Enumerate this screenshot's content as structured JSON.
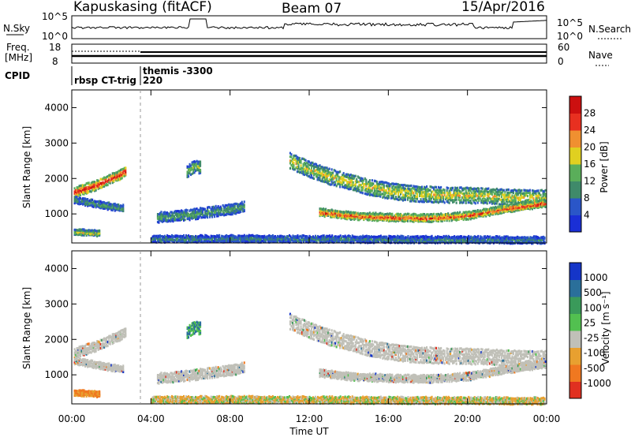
{
  "header": {
    "station": "Kapuskasing (fitACF)",
    "beam": "Beam 07",
    "date": "15/Apr/2016"
  },
  "noise_panel": {
    "left_label": "N.Sky",
    "right_label": "N.Search",
    "left_ticks": [
      "10^5",
      "10^0"
    ],
    "right_ticks": [
      "10^5",
      "10^0"
    ]
  },
  "freq_panel": {
    "left_label_1": "Freq.",
    "left_label_2": "[MHz]",
    "right_label": "Nave",
    "left_ticks": [
      "18",
      "8"
    ],
    "right_ticks": [
      "60",
      "0"
    ]
  },
  "cpid": {
    "label": "CPID",
    "segments": [
      {
        "start_hour": 0.0,
        "text": "rbsp CT-trig"
      },
      {
        "start_hour": 3.4,
        "text": "themis -3300"
      },
      {
        "start_hour": 3.4,
        "text": "220"
      }
    ]
  },
  "power_panel": {
    "ylabel": "Slant Range [km]",
    "yticks": [
      "1000",
      "2000",
      "3000",
      "4000"
    ],
    "colorbar_label": "Power [dB]",
    "colorbar_ticks": [
      "4",
      "8",
      "12",
      "16",
      "20",
      "24",
      "28"
    ]
  },
  "velocity_panel": {
    "ylabel": "Slant Range [km]",
    "yticks": [
      "1000",
      "2000",
      "3000",
      "4000"
    ],
    "colorbar_label": "Velocity [m s⁻¹]",
    "colorbar_ticks": [
      "1000",
      "500",
      "100",
      "25",
      "-25",
      "-100",
      "-500",
      "-1000"
    ]
  },
  "xaxis": {
    "label": "Time UT",
    "ticks": [
      "00:00",
      "04:00",
      "08:00",
      "12:00",
      "16:00",
      "20:00",
      "00:00"
    ]
  },
  "colors": {
    "power_scale": [
      "#1a2fd6",
      "#2a56c8",
      "#3f8a6a",
      "#5aae5a",
      "#e0d020",
      "#f09030",
      "#e83020",
      "#cc1010"
    ],
    "velocity_scale": [
      "#1535c8",
      "#2a6f9a",
      "#3a9a5a",
      "#52c050",
      "#c0c0b8",
      "#e8a030",
      "#f07820",
      "#e03020"
    ],
    "ground_scatter": "#c0c0b8"
  },
  "chart_data": {
    "type": "heatmap",
    "x_unit": "hours UT",
    "xlim": [
      0,
      24
    ],
    "ylim": [
      180,
      4500
    ],
    "y_unit": "km",
    "power_dB_range": [
      3,
      30
    ],
    "velocity_range": [
      -1000,
      1000
    ],
    "echo_bands": [
      {
        "t": [
          0.1,
          0.6,
          1.2,
          1.8,
          2.4,
          2.7
        ],
        "range": [
          1600,
          1700,
          1800,
          1950,
          2100,
          2200
        ],
        "width": 120,
        "power": 24
      },
      {
        "t": [
          0.1,
          1.0,
          2.0,
          2.6
        ],
        "range": [
          1400,
          1300,
          1200,
          1150
        ],
        "width": 80,
        "power": 12
      },
      {
        "t": [
          0.1,
          0.8,
          1.4
        ],
        "range": [
          480,
          470,
          450
        ],
        "width": 70,
        "power": 16
      },
      {
        "t": [
          4.3,
          5.5,
          7.0,
          8.2,
          8.7
        ],
        "range": [
          900,
          950,
          1050,
          1150,
          1200
        ],
        "width": 130,
        "power": 12
      },
      {
        "t": [
          5.8,
          6.2,
          6.5
        ],
        "range": [
          2200,
          2350,
          2300
        ],
        "width": 150,
        "power": 14
      },
      {
        "t": [
          11.0,
          12.0,
          13.0,
          14.0,
          15.0,
          16.0,
          17.0,
          18.0,
          19.0,
          20.0,
          21.0,
          22.0,
          23.0,
          23.9
        ],
        "range": [
          2500,
          2250,
          2050,
          1900,
          1750,
          1650,
          1580,
          1550,
          1530,
          1520,
          1500,
          1470,
          1450,
          1450
        ],
        "width": 200,
        "power": 16
      },
      {
        "t": [
          12.5,
          14.0,
          16.0,
          18.0,
          20.0,
          22.0,
          23.9
        ],
        "range": [
          1050,
          950,
          900,
          880,
          950,
          1150,
          1300
        ],
        "width": 90,
        "power": 22
      },
      {
        "t": [
          4.0,
          8.0,
          12.0,
          16.0,
          20.0,
          23.9
        ],
        "range": [
          290,
          300,
          290,
          280,
          270,
          260
        ],
        "width": 80,
        "power": 10
      }
    ]
  }
}
